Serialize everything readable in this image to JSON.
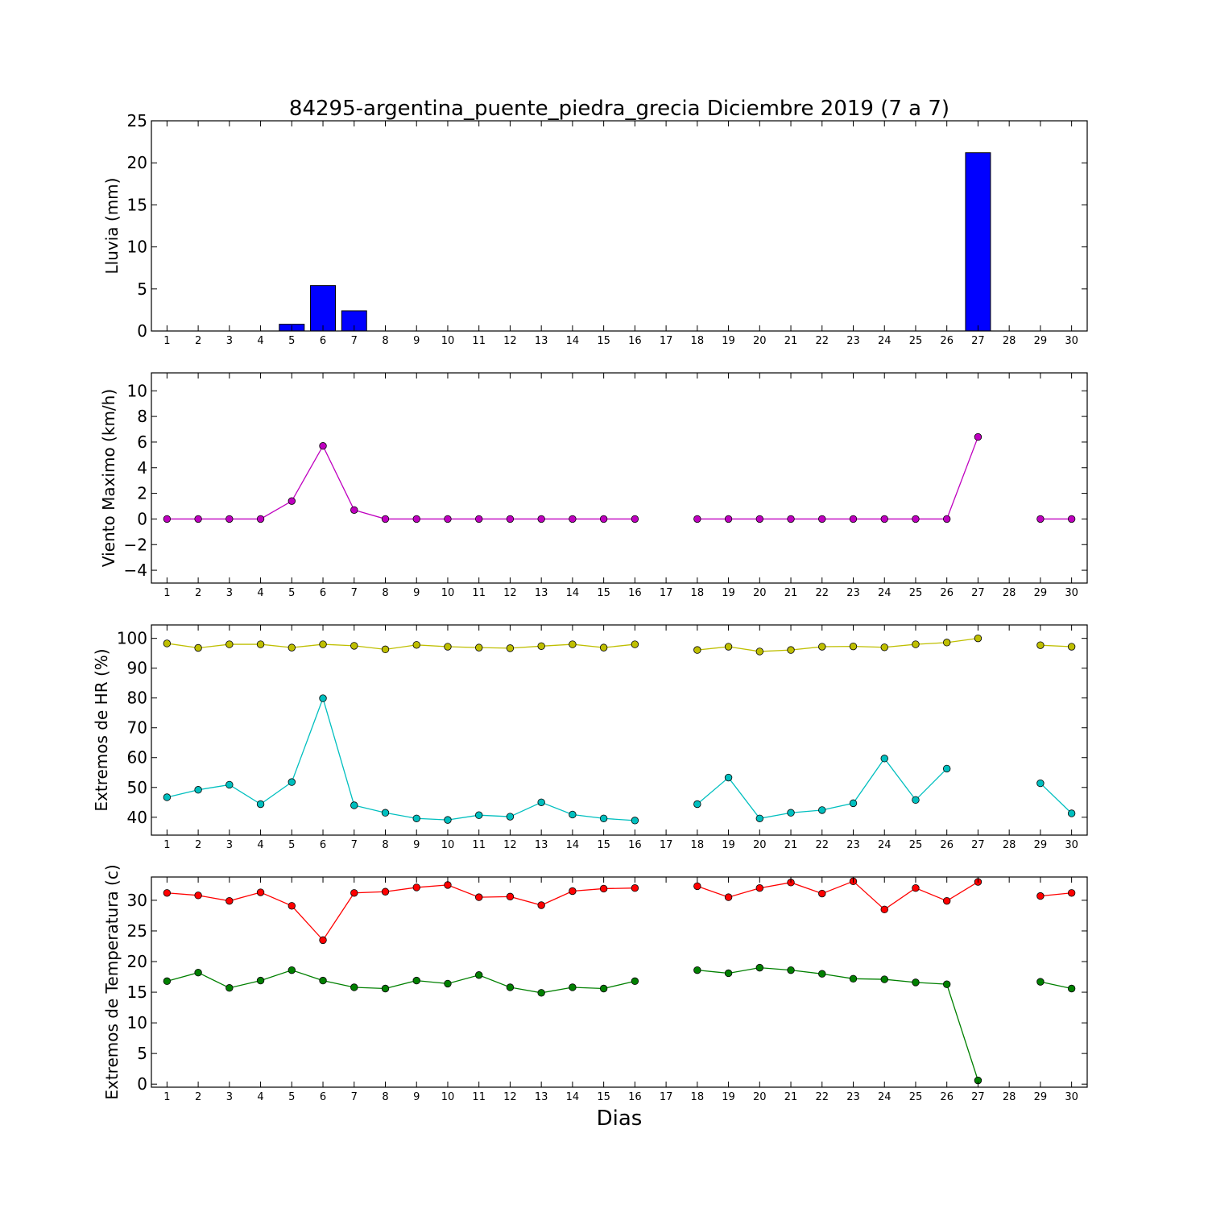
{
  "title": "84295-argentina_puente_piedra_grecia Diciembre 2019  (7 a 7)",
  "xlabel": "Dias",
  "days": [
    1,
    2,
    3,
    4,
    5,
    6,
    7,
    8,
    9,
    10,
    11,
    12,
    13,
    14,
    15,
    16,
    17,
    18,
    19,
    20,
    21,
    22,
    23,
    24,
    25,
    26,
    27,
    28,
    29,
    30
  ],
  "chart_data": [
    {
      "type": "bar",
      "ylabel": "Lluvia (mm)",
      "ylim": [
        0,
        25
      ],
      "yticks": [
        0,
        5,
        10,
        15,
        20,
        25
      ],
      "x": [
        1,
        2,
        3,
        4,
        5,
        6,
        7,
        8,
        9,
        10,
        11,
        12,
        13,
        14,
        15,
        16,
        17,
        18,
        19,
        20,
        21,
        22,
        23,
        24,
        25,
        26,
        27,
        28,
        29,
        30
      ],
      "series": [
        {
          "color": "#0000ff",
          "values": [
            0,
            0,
            0,
            0,
            0.8,
            5.4,
            2.4,
            0,
            0,
            0,
            0,
            0,
            0,
            0,
            0,
            0,
            0,
            0,
            0,
            0,
            0,
            0,
            0,
            0,
            0,
            0,
            21.2,
            0,
            0,
            0
          ]
        }
      ]
    },
    {
      "type": "line",
      "ylabel": "Viento Maximo (km/h)",
      "ylim": [
        -5,
        11.4
      ],
      "yticks": [
        -4,
        -2,
        0,
        2,
        4,
        6,
        8,
        10
      ],
      "x": [
        1,
        2,
        3,
        4,
        5,
        6,
        7,
        8,
        9,
        10,
        11,
        12,
        13,
        14,
        15,
        16,
        17,
        18,
        19,
        20,
        21,
        22,
        23,
        24,
        25,
        26,
        27,
        28,
        29,
        30
      ],
      "series": [
        {
          "color": "#bf00bf",
          "values": [
            0,
            0,
            0,
            0,
            1.4,
            5.7,
            0.7,
            0,
            0,
            0,
            0,
            0,
            0,
            0,
            0,
            0,
            null,
            0,
            0,
            0,
            0,
            0,
            0,
            0,
            0,
            0,
            6.4,
            null,
            0,
            0
          ]
        }
      ]
    },
    {
      "type": "line",
      "ylabel": "Extremos de HR (%)",
      "ylim": [
        34,
        104.5
      ],
      "yticks": [
        40,
        50,
        60,
        70,
        80,
        90,
        100
      ],
      "x": [
        1,
        2,
        3,
        4,
        5,
        6,
        7,
        8,
        9,
        10,
        11,
        12,
        13,
        14,
        15,
        16,
        17,
        18,
        19,
        20,
        21,
        22,
        23,
        24,
        25,
        26,
        27,
        28,
        29,
        30
      ],
      "series": [
        {
          "color": "#bfbf00",
          "values": [
            98.3,
            96.8,
            98,
            98,
            96.9,
            98,
            97.5,
            96.3,
            97.8,
            97.2,
            96.9,
            96.7,
            97.4,
            98,
            96.9,
            98,
            null,
            96.1,
            97.2,
            95.6,
            96.1,
            97.2,
            97.3,
            97,
            98,
            98.6,
            100,
            null,
            97.7,
            97.2
          ]
        },
        {
          "color": "#00bfbf",
          "values": [
            46.7,
            49.2,
            50.9,
            44.4,
            51.8,
            79.9,
            44,
            41.5,
            39.6,
            39.1,
            40.7,
            40.2,
            45,
            40.9,
            39.6,
            38.9,
            null,
            44.4,
            53.3,
            39.6,
            41.5,
            42.4,
            44.7,
            59.7,
            45.8,
            56.3,
            null,
            null,
            51.4,
            41.3
          ]
        }
      ]
    },
    {
      "type": "line",
      "ylabel": "Extremos de Temperatura (c)",
      "ylim": [
        -0.5,
        33.8
      ],
      "yticks": [
        0,
        5,
        10,
        15,
        20,
        25,
        30
      ],
      "x": [
        1,
        2,
        3,
        4,
        5,
        6,
        7,
        8,
        9,
        10,
        11,
        12,
        13,
        14,
        15,
        16,
        17,
        18,
        19,
        20,
        21,
        22,
        23,
        24,
        25,
        26,
        27,
        28,
        29,
        30
      ],
      "series": [
        {
          "color": "#ff0000",
          "values": [
            31.2,
            30.8,
            29.9,
            31.3,
            29.1,
            23.5,
            31.2,
            31.4,
            32.1,
            32.5,
            30.5,
            30.6,
            29.2,
            31.5,
            31.9,
            32,
            null,
            32.3,
            30.5,
            32,
            32.9,
            31.1,
            33.1,
            28.5,
            32,
            29.9,
            33,
            null,
            30.7,
            31.2
          ]
        },
        {
          "color": "#008000",
          "values": [
            16.8,
            18.2,
            15.7,
            16.9,
            18.6,
            16.9,
            15.8,
            15.6,
            16.9,
            16.4,
            17.8,
            15.8,
            14.9,
            15.8,
            15.6,
            16.8,
            null,
            18.6,
            18.1,
            19,
            18.6,
            18,
            17.2,
            17.1,
            16.6,
            16.3,
            0.6,
            null,
            16.7,
            15.6
          ]
        }
      ]
    }
  ]
}
